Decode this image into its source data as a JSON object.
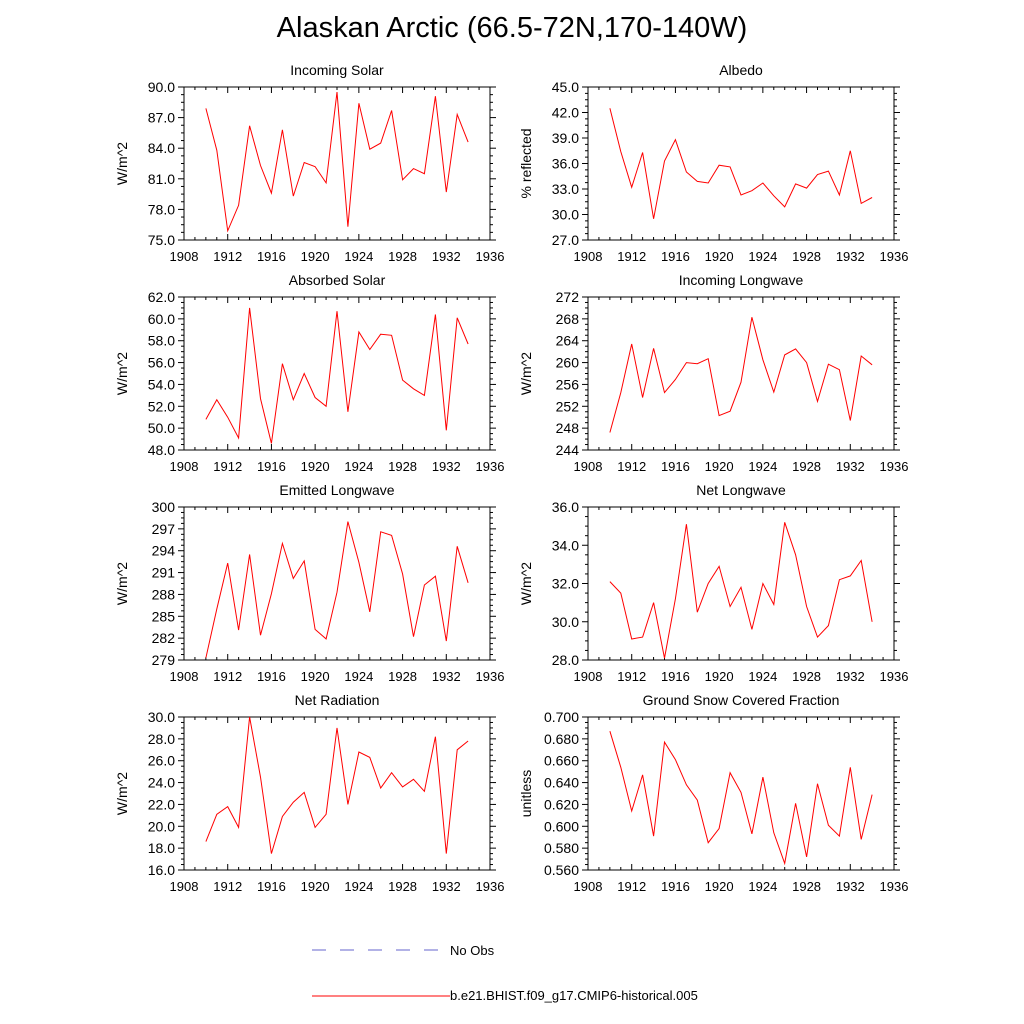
{
  "title": "Alaskan Arctic (66.5-72N,170-140W)",
  "legend": {
    "obs_label": "No Obs",
    "model_label": "b.e21.BHIST.f09_g17.CMIP6-historical.005",
    "obs_color": "#6666cc",
    "model_color": "#ff0000"
  },
  "chart_data": [
    {
      "type": "line",
      "title": "Incoming Solar",
      "ylabel": "W/m^2",
      "xlim": [
        1908,
        1936
      ],
      "xticks": [
        "1908",
        "1912",
        "1916",
        "1920",
        "1924",
        "1928",
        "1932",
        "1936"
      ],
      "ylim": [
        75.0,
        90.0
      ],
      "yticks": [
        "75.0",
        "78.0",
        "81.0",
        "84.0",
        "87.0",
        "90.0"
      ],
      "series": [
        {
          "name": "b.e21.BHIST.f09_g17.CMIP6-historical.005",
          "x": [
            1910,
            1911,
            1912,
            1913,
            1914,
            1915,
            1916,
            1917,
            1918,
            1919,
            1920,
            1921,
            1922,
            1923,
            1924,
            1925,
            1926,
            1927,
            1928,
            1929,
            1930,
            1931,
            1932,
            1933,
            1934
          ],
          "y": [
            87.9,
            83.8,
            75.9,
            78.4,
            86.2,
            82.3,
            79.6,
            85.8,
            79.3,
            82.6,
            82.2,
            80.6,
            89.5,
            76.3,
            88.4,
            83.9,
            84.5,
            87.7,
            80.9,
            82.0,
            81.5,
            89.1,
            79.7,
            87.3,
            84.6
          ]
        }
      ]
    },
    {
      "type": "line",
      "title": "Albedo",
      "ylabel": "% reflected",
      "xlim": [
        1908,
        1936
      ],
      "xticks": [
        "1908",
        "1912",
        "1916",
        "1920",
        "1924",
        "1928",
        "1932",
        "1936"
      ],
      "ylim": [
        27.0,
        45.0
      ],
      "yticks": [
        "27.0",
        "30.0",
        "33.0",
        "36.0",
        "39.0",
        "42.0",
        "45.0"
      ],
      "series": [
        {
          "name": "b.e21.BHIST.f09_g17.CMIP6-historical.005",
          "x": [
            1910,
            1911,
            1912,
            1913,
            1914,
            1915,
            1916,
            1917,
            1918,
            1919,
            1920,
            1921,
            1922,
            1923,
            1924,
            1925,
            1926,
            1927,
            1928,
            1929,
            1930,
            1931,
            1932,
            1933,
            1934
          ],
          "y": [
            42.5,
            37.4,
            33.2,
            37.3,
            29.5,
            36.3,
            38.8,
            35.0,
            33.9,
            33.7,
            35.8,
            35.6,
            32.3,
            32.8,
            33.7,
            32.2,
            30.9,
            33.6,
            33.1,
            34.7,
            35.1,
            32.3,
            37.5,
            31.3,
            32.0
          ]
        }
      ]
    },
    {
      "type": "line",
      "title": "Absorbed Solar",
      "ylabel": "W/m^2",
      "xlim": [
        1908,
        1936
      ],
      "xticks": [
        "1908",
        "1912",
        "1916",
        "1920",
        "1924",
        "1928",
        "1932",
        "1936"
      ],
      "ylim": [
        48.0,
        62.0
      ],
      "yticks": [
        "48.0",
        "50.0",
        "52.0",
        "54.0",
        "56.0",
        "58.0",
        "60.0",
        "62.0"
      ],
      "series": [
        {
          "name": "b.e21.BHIST.f09_g17.CMIP6-historical.005",
          "x": [
            1910,
            1911,
            1912,
            1913,
            1914,
            1915,
            1916,
            1917,
            1918,
            1919,
            1920,
            1921,
            1922,
            1923,
            1924,
            1925,
            1926,
            1927,
            1928,
            1929,
            1930,
            1931,
            1932,
            1933,
            1934
          ],
          "y": [
            50.8,
            52.6,
            51.0,
            49.1,
            61.0,
            52.7,
            48.6,
            55.9,
            52.6,
            55.0,
            52.8,
            52.0,
            60.7,
            51.5,
            58.8,
            57.2,
            58.6,
            58.5,
            54.4,
            53.6,
            53.0,
            60.4,
            49.8,
            60.1,
            57.7
          ]
        }
      ]
    },
    {
      "type": "line",
      "title": "Incoming Longwave",
      "ylabel": "W/m^2",
      "xlim": [
        1908,
        1936
      ],
      "xticks": [
        "1908",
        "1912",
        "1916",
        "1920",
        "1924",
        "1928",
        "1932",
        "1936"
      ],
      "ylim": [
        244,
        272
      ],
      "yticks": [
        "244",
        "248",
        "252",
        "256",
        "260",
        "264",
        "268",
        "272"
      ],
      "series": [
        {
          "name": "b.e21.BHIST.f09_g17.CMIP6-historical.005",
          "x": [
            1910,
            1911,
            1912,
            1913,
            1914,
            1915,
            1916,
            1917,
            1918,
            1919,
            1920,
            1921,
            1922,
            1923,
            1924,
            1925,
            1926,
            1927,
            1928,
            1929,
            1930,
            1931,
            1932,
            1933,
            1934
          ],
          "y": [
            247.2,
            254.5,
            263.4,
            253.6,
            262.6,
            254.5,
            256.9,
            260.0,
            259.8,
            260.7,
            250.3,
            251.1,
            256.4,
            268.3,
            260.5,
            254.6,
            261.4,
            262.5,
            260.0,
            252.9,
            259.7,
            258.7,
            249.4,
            261.2,
            259.6
          ]
        }
      ]
    },
    {
      "type": "line",
      "title": "Emitted Longwave",
      "ylabel": "W/m^2",
      "xlim": [
        1908,
        1936
      ],
      "xticks": [
        "1908",
        "1912",
        "1916",
        "1920",
        "1924",
        "1928",
        "1932",
        "1936"
      ],
      "ylim": [
        279,
        300
      ],
      "yticks": [
        "279",
        "282",
        "285",
        "288",
        "291",
        "294",
        "297",
        "300"
      ],
      "series": [
        {
          "name": "b.e21.BHIST.f09_g17.CMIP6-historical.005",
          "x": [
            1910,
            1911,
            1912,
            1913,
            1914,
            1915,
            1916,
            1917,
            1918,
            1919,
            1920,
            1921,
            1922,
            1923,
            1924,
            1925,
            1926,
            1927,
            1928,
            1929,
            1930,
            1931,
            1932,
            1933,
            1934
          ],
          "y": [
            279.3,
            286.0,
            292.3,
            283.1,
            293.5,
            282.4,
            288.1,
            295.0,
            290.2,
            292.6,
            283.2,
            281.9,
            288.3,
            298.0,
            292.4,
            285.6,
            296.6,
            296.1,
            290.8,
            282.2,
            289.3,
            290.5,
            281.6,
            294.6,
            289.6
          ]
        }
      ]
    },
    {
      "type": "line",
      "title": "Net Longwave",
      "ylabel": "W/m^2",
      "xlim": [
        1908,
        1936
      ],
      "xticks": [
        "1908",
        "1912",
        "1916",
        "1920",
        "1924",
        "1928",
        "1932",
        "1936"
      ],
      "ylim": [
        28.0,
        36.0
      ],
      "yticks": [
        "28.0",
        "30.0",
        "32.0",
        "34.0",
        "36.0"
      ],
      "series": [
        {
          "name": "b.e21.BHIST.f09_g17.CMIP6-historical.005",
          "x": [
            1910,
            1911,
            1912,
            1913,
            1914,
            1915,
            1916,
            1917,
            1918,
            1919,
            1920,
            1921,
            1922,
            1923,
            1924,
            1925,
            1926,
            1927,
            1928,
            1929,
            1930,
            1931,
            1932,
            1933,
            1934
          ],
          "y": [
            32.1,
            31.5,
            29.1,
            29.2,
            31.0,
            28.1,
            31.2,
            35.1,
            30.5,
            32.0,
            32.9,
            30.8,
            31.8,
            29.6,
            32.0,
            30.9,
            35.2,
            33.5,
            30.8,
            29.2,
            29.8,
            32.2,
            32.4,
            33.2,
            30.0
          ]
        }
      ]
    },
    {
      "type": "line",
      "title": "Net Radiation",
      "ylabel": "W/m^2",
      "xlim": [
        1908,
        1936
      ],
      "xticks": [
        "1908",
        "1912",
        "1916",
        "1920",
        "1924",
        "1928",
        "1932",
        "1936"
      ],
      "ylim": [
        16.0,
        30.0
      ],
      "yticks": [
        "16.0",
        "18.0",
        "20.0",
        "22.0",
        "24.0",
        "26.0",
        "28.0",
        "30.0"
      ],
      "series": [
        {
          "name": "b.e21.BHIST.f09_g17.CMIP6-historical.005",
          "x": [
            1910,
            1911,
            1912,
            1913,
            1914,
            1915,
            1916,
            1917,
            1918,
            1919,
            1920,
            1921,
            1922,
            1923,
            1924,
            1925,
            1926,
            1927,
            1928,
            1929,
            1930,
            1931,
            1932,
            1933,
            1934
          ],
          "y": [
            18.6,
            21.1,
            21.8,
            19.9,
            30.0,
            24.5,
            17.5,
            20.9,
            22.2,
            23.1,
            19.9,
            21.1,
            29.0,
            22.0,
            26.8,
            26.3,
            23.5,
            24.9,
            23.6,
            24.3,
            23.2,
            28.2,
            17.5,
            27.0,
            27.8
          ]
        }
      ]
    },
    {
      "type": "line",
      "title": "Ground Snow Covered Fraction",
      "ylabel": "unitless",
      "xlim": [
        1908,
        1936
      ],
      "xticks": [
        "1908",
        "1912",
        "1916",
        "1920",
        "1924",
        "1928",
        "1932",
        "1936"
      ],
      "ylim": [
        0.56,
        0.7
      ],
      "yticks": [
        "0.560",
        "0.580",
        "0.600",
        "0.620",
        "0.640",
        "0.660",
        "0.680",
        "0.700"
      ],
      "series": [
        {
          "name": "b.e21.BHIST.f09_g17.CMIP6-historical.005",
          "x": [
            1910,
            1911,
            1912,
            1913,
            1914,
            1915,
            1916,
            1917,
            1918,
            1919,
            1920,
            1921,
            1922,
            1923,
            1924,
            1925,
            1926,
            1927,
            1928,
            1929,
            1930,
            1931,
            1932,
            1933,
            1934
          ],
          "y": [
            0.687,
            0.654,
            0.614,
            0.647,
            0.591,
            0.677,
            0.661,
            0.638,
            0.624,
            0.585,
            0.598,
            0.649,
            0.631,
            0.593,
            0.645,
            0.594,
            0.566,
            0.621,
            0.572,
            0.639,
            0.601,
            0.591,
            0.654,
            0.588,
            0.629
          ]
        }
      ]
    }
  ]
}
